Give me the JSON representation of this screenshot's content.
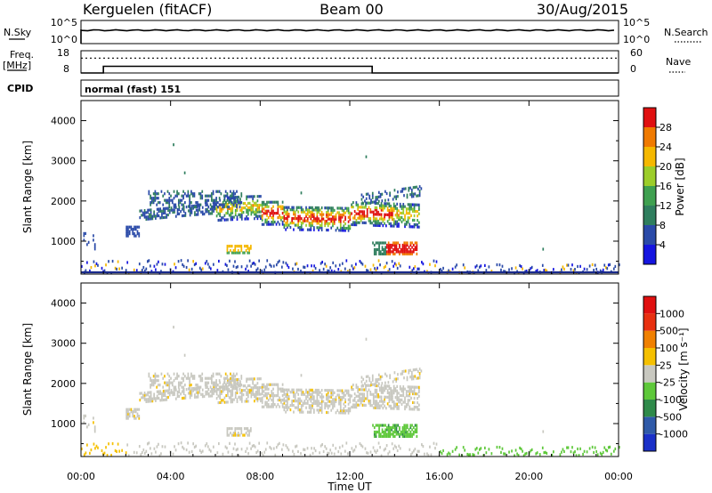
{
  "header": {
    "title_left": "Kerguelen (fitACF)",
    "title_center": "Beam 00",
    "title_right": "30/Aug/2015"
  },
  "status_panel": {
    "nsky_label": "N.Sky",
    "nsky_ticks": [
      "10^5",
      "10^0"
    ],
    "nsearch_label": "N.Search",
    "nsearch_ticks": [
      "10^5",
      "10^0"
    ],
    "freq_label": "Freq.",
    "freq_unit": "[MHz]",
    "freq_ticks": [
      "18",
      "8"
    ],
    "nave_label": "Nave",
    "nave_ticks": [
      "60",
      "0"
    ],
    "cpid_label": "CPID",
    "cpid_value": "normal (fast) 151",
    "freq_series": [
      {
        "t": 0,
        "mhz": 8
      },
      {
        "t": 1,
        "mhz": 8
      },
      {
        "t": 1,
        "mhz": 11
      },
      {
        "t": 13,
        "mhz": 11
      },
      {
        "t": 13,
        "mhz": 8
      },
      {
        "t": 24,
        "mhz": 8
      }
    ],
    "nave_level": 40
  },
  "chart_data": [
    {
      "type": "heatmap",
      "ylabel": "Slant Range [km]",
      "ylim": [
        180,
        4500
      ],
      "yticks": [
        1000,
        2000,
        3000,
        4000
      ],
      "colorbar_label": "Power [dB]",
      "colorbar_ticks": [
        "4",
        "8",
        "12",
        "16",
        "20",
        "24",
        "28"
      ],
      "colors": [
        "#1515e0",
        "#2a4aa8",
        "#2f7e5e",
        "#3fa050",
        "#9ccd2a",
        "#f5b800",
        "#f07a00",
        "#e01010"
      ]
    },
    {
      "type": "heatmap",
      "ylabel": "Slant Range [km]",
      "ylim": [
        180,
        4500
      ],
      "yticks": [
        1000,
        2000,
        3000,
        4000
      ],
      "colorbar_label": "Velocity [m s⁻¹]",
      "colorbar_ticks": [
        "1000",
        "500",
        "100",
        "25",
        "-25",
        "-100",
        "-500",
        "-1000"
      ],
      "colors": [
        "#1a30c8",
        "#2f5aa8",
        "#2f8a4a",
        "#5ec83a",
        "#c8c8c0",
        "#f5c000",
        "#f08000",
        "#e83010",
        "#e01010"
      ]
    }
  ],
  "xaxis": {
    "label": "Time UT",
    "ticks": [
      "00:00",
      "04:00",
      "08:00",
      "12:00",
      "16:00",
      "20:00",
      "00:00"
    ],
    "range_hours": [
      0,
      24
    ]
  }
}
